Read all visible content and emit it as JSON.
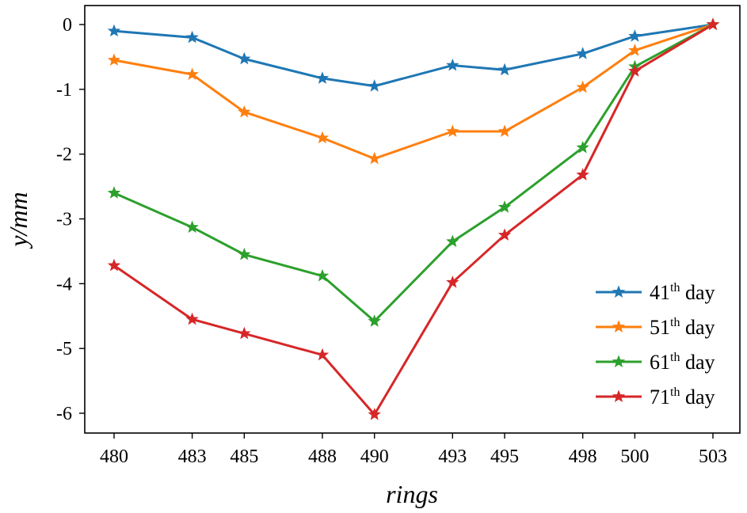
{
  "chart_data": {
    "type": "line",
    "xlabel": "rings",
    "ylabel": "y/mm",
    "x": [
      480,
      483,
      485,
      488,
      490,
      493,
      495,
      498,
      500,
      503
    ],
    "x_tick_labels": [
      "480",
      "483",
      "485",
      "488",
      "490",
      "493",
      "495",
      "498",
      "500",
      "503"
    ],
    "y_tick_labels": [
      "0",
      "-1",
      "-2",
      "-3",
      "-4",
      "-5",
      "-6"
    ],
    "y_ticks": [
      0,
      -1,
      -2,
      -3,
      -4,
      -5,
      -6
    ],
    "ylim": [
      -6.3,
      0.2
    ],
    "grid": false,
    "legend_position": "bottom-right",
    "marker": "star",
    "series": [
      {
        "name_prefix": "41",
        "name_sup": "th",
        "name_suffix": "day",
        "color": "#1f77b4",
        "values": [
          -0.1,
          -0.2,
          -0.53,
          -0.83,
          -0.95,
          -0.63,
          -0.7,
          -0.45,
          -0.18,
          0
        ]
      },
      {
        "name_prefix": "51",
        "name_sup": "th",
        "name_suffix": "day",
        "color": "#ff7f0e",
        "values": [
          -0.55,
          -0.77,
          -1.35,
          -1.75,
          -2.07,
          -1.65,
          -1.65,
          -0.97,
          -0.4,
          0
        ]
      },
      {
        "name_prefix": "61",
        "name_sup": "th",
        "name_suffix": "day",
        "color": "#2ca02c",
        "values": [
          -2.6,
          -3.13,
          -3.55,
          -3.88,
          -4.58,
          -3.35,
          -2.82,
          -1.9,
          -0.65,
          0
        ]
      },
      {
        "name_prefix": "71",
        "name_sup": "th",
        "name_suffix": "day",
        "color": "#d62728",
        "values": [
          -3.72,
          -4.55,
          -4.77,
          -5.1,
          -6.02,
          -3.98,
          -3.25,
          -2.32,
          -0.72,
          0
        ]
      }
    ]
  }
}
